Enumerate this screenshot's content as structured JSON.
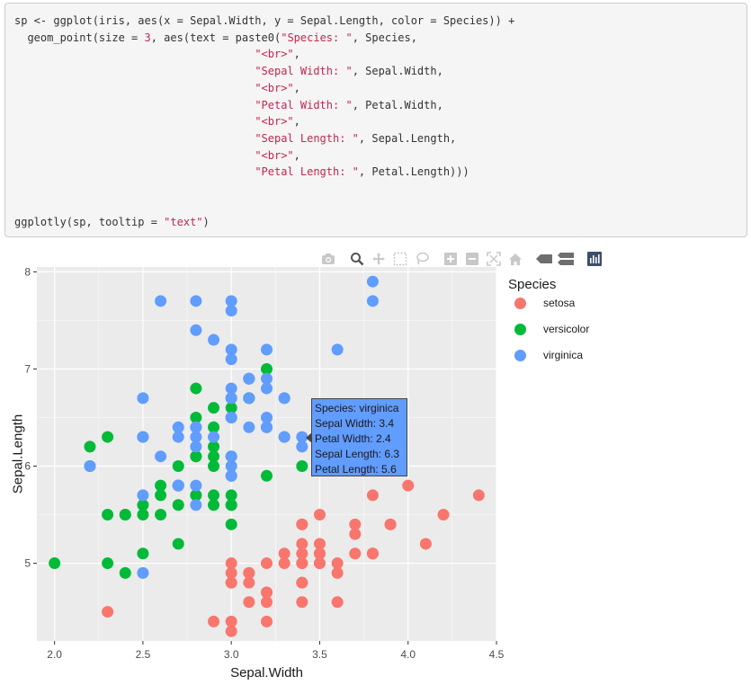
{
  "code": {
    "line1a": "sp <- ggplot(iris, aes(x = Sepal.Width, y = Sepal.Length, color = Species)) +",
    "line2a": "  geom_point(size = ",
    "line2num": "3",
    "line2b": ", aes(text = paste0(",
    "line2str": "\"Species: \"",
    "line2c": ", Species,",
    "line3str": "\"<br>\"",
    "line3c": ",",
    "line4str": "\"Sepal Width: \"",
    "line4c": ", Sepal.Width,",
    "line5str": "\"<br>\"",
    "line5c": ",",
    "line6str": "\"Petal Width: \"",
    "line6c": ", Petal.Width,",
    "line7str": "\"<br>\"",
    "line7c": ",",
    "line8str": "\"Sepal Length: \"",
    "line8c": ", Sepal.Length,",
    "line9str": "\"<br>\"",
    "line9c": ",",
    "line10str": "\"Petal Length: \"",
    "line10c": ", Petal.Length)))",
    "line11a": "ggplotly(sp, tooltip = ",
    "line11str": "\"text\"",
    "line11c": ")"
  },
  "modebar": {
    "buttons": [
      "camera-icon",
      "zoom-icon",
      "pan-icon",
      "box-select-icon",
      "lasso-select-icon",
      "zoom-in-icon",
      "zoom-out-icon",
      "autoscale-icon",
      "reset-axes-icon",
      "spike-lines-icon",
      "compare-data-icon",
      "plotly-logo-icon"
    ]
  },
  "tooltip": {
    "lines": [
      "Species: virginica",
      "Sepal Width: 3.4",
      "Petal Width: 2.4",
      "Sepal Length: 6.3",
      "Petal Length: 5.6"
    ],
    "color": "#619cff"
  },
  "chart_data": {
    "type": "scatter",
    "title": "",
    "xlabel": "Sepal.Width",
    "ylabel": "Sepal.Length",
    "xlim": [
      1.9,
      4.5
    ],
    "ylim": [
      4.2,
      8.05
    ],
    "x_ticks": [
      "2.0",
      "2.5",
      "3.0",
      "3.5",
      "4.0",
      "4.5"
    ],
    "y_ticks": [
      "5",
      "6",
      "7",
      "8"
    ],
    "grid": true,
    "legend_title": "Species",
    "legend_position": "right",
    "background": "#ebebeb",
    "series": [
      {
        "name": "setosa",
        "color": "#f8766d",
        "points": [
          [
            3.5,
            5.1
          ],
          [
            3.0,
            4.9
          ],
          [
            3.2,
            4.7
          ],
          [
            3.1,
            4.6
          ],
          [
            3.6,
            5.0
          ],
          [
            3.9,
            5.4
          ],
          [
            3.4,
            4.6
          ],
          [
            3.4,
            5.0
          ],
          [
            2.9,
            4.4
          ],
          [
            3.1,
            4.9
          ],
          [
            3.7,
            5.4
          ],
          [
            3.4,
            4.8
          ],
          [
            3.0,
            4.8
          ],
          [
            3.0,
            4.3
          ],
          [
            4.0,
            5.8
          ],
          [
            4.4,
            5.7
          ],
          [
            3.9,
            5.4
          ],
          [
            3.5,
            5.1
          ],
          [
            3.8,
            5.7
          ],
          [
            3.8,
            5.1
          ],
          [
            3.4,
            5.4
          ],
          [
            3.7,
            5.1
          ],
          [
            3.6,
            4.6
          ],
          [
            3.3,
            5.1
          ],
          [
            3.4,
            4.8
          ],
          [
            3.0,
            5.0
          ],
          [
            3.4,
            5.0
          ],
          [
            3.5,
            5.2
          ],
          [
            3.4,
            5.2
          ],
          [
            3.2,
            4.7
          ],
          [
            3.1,
            4.8
          ],
          [
            3.4,
            5.4
          ],
          [
            4.1,
            5.2
          ],
          [
            4.2,
            5.5
          ],
          [
            3.1,
            4.9
          ],
          [
            3.2,
            5.0
          ],
          [
            3.5,
            5.5
          ],
          [
            3.6,
            4.9
          ],
          [
            3.0,
            4.4
          ],
          [
            3.4,
            5.1
          ],
          [
            3.5,
            5.0
          ],
          [
            2.3,
            4.5
          ],
          [
            3.2,
            4.4
          ],
          [
            3.5,
            5.0
          ],
          [
            3.8,
            5.1
          ],
          [
            3.0,
            4.8
          ],
          [
            3.8,
            5.1
          ],
          [
            3.2,
            4.6
          ],
          [
            3.7,
            5.3
          ],
          [
            3.3,
            5.0
          ]
        ]
      },
      {
        "name": "versicolor",
        "color": "#00ba38",
        "points": [
          [
            3.2,
            7.0
          ],
          [
            3.2,
            6.4
          ],
          [
            3.1,
            6.9
          ],
          [
            2.3,
            5.5
          ],
          [
            2.8,
            6.5
          ],
          [
            2.8,
            5.7
          ],
          [
            3.3,
            6.3
          ],
          [
            2.4,
            4.9
          ],
          [
            2.9,
            6.6
          ],
          [
            2.7,
            5.2
          ],
          [
            2.0,
            5.0
          ],
          [
            3.0,
            5.9
          ],
          [
            2.2,
            6.0
          ],
          [
            2.9,
            6.1
          ],
          [
            2.9,
            5.6
          ],
          [
            3.1,
            6.7
          ],
          [
            3.0,
            5.6
          ],
          [
            2.7,
            5.8
          ],
          [
            2.2,
            6.2
          ],
          [
            2.5,
            5.6
          ],
          [
            3.2,
            5.9
          ],
          [
            2.8,
            6.1
          ],
          [
            2.5,
            6.3
          ],
          [
            2.8,
            6.1
          ],
          [
            2.9,
            6.4
          ],
          [
            3.0,
            6.6
          ],
          [
            2.8,
            6.8
          ],
          [
            3.0,
            6.7
          ],
          [
            2.9,
            6.0
          ],
          [
            2.6,
            5.7
          ],
          [
            2.4,
            5.5
          ],
          [
            2.4,
            5.5
          ],
          [
            2.7,
            5.8
          ],
          [
            2.7,
            6.0
          ],
          [
            3.0,
            5.4
          ],
          [
            3.4,
            6.0
          ],
          [
            3.1,
            6.7
          ],
          [
            2.3,
            6.3
          ],
          [
            3.0,
            5.6
          ],
          [
            2.5,
            5.5
          ],
          [
            2.6,
            5.5
          ],
          [
            3.0,
            6.1
          ],
          [
            2.6,
            5.8
          ],
          [
            2.3,
            5.0
          ],
          [
            2.7,
            5.6
          ],
          [
            3.0,
            5.7
          ],
          [
            2.9,
            5.7
          ],
          [
            2.9,
            6.2
          ],
          [
            2.5,
            5.1
          ],
          [
            2.8,
            5.7
          ]
        ]
      },
      {
        "name": "virginica",
        "color": "#619cff",
        "points": [
          [
            3.3,
            6.3
          ],
          [
            2.7,
            5.8
          ],
          [
            3.0,
            7.1
          ],
          [
            2.9,
            6.3
          ],
          [
            3.0,
            6.5
          ],
          [
            3.0,
            7.6
          ],
          [
            2.5,
            4.9
          ],
          [
            2.9,
            7.3
          ],
          [
            2.5,
            6.7
          ],
          [
            3.6,
            7.2
          ],
          [
            3.2,
            6.5
          ],
          [
            2.7,
            6.4
          ],
          [
            3.0,
            6.8
          ],
          [
            2.5,
            5.7
          ],
          [
            2.8,
            5.8
          ],
          [
            3.2,
            6.4
          ],
          [
            3.0,
            6.5
          ],
          [
            3.8,
            7.7
          ],
          [
            2.6,
            7.7
          ],
          [
            2.2,
            6.0
          ],
          [
            3.2,
            6.9
          ],
          [
            2.8,
            5.6
          ],
          [
            2.8,
            7.7
          ],
          [
            2.7,
            6.3
          ],
          [
            3.3,
            6.7
          ],
          [
            3.2,
            7.2
          ],
          [
            2.8,
            6.2
          ],
          [
            3.0,
            6.1
          ],
          [
            2.8,
            6.4
          ],
          [
            3.0,
            7.2
          ],
          [
            2.8,
            7.4
          ],
          [
            3.8,
            7.9
          ],
          [
            2.8,
            6.4
          ],
          [
            2.8,
            6.3
          ],
          [
            2.6,
            6.1
          ],
          [
            3.0,
            7.7
          ],
          [
            3.4,
            6.3
          ],
          [
            3.1,
            6.4
          ],
          [
            3.0,
            6.0
          ],
          [
            3.1,
            6.9
          ],
          [
            3.1,
            6.7
          ],
          [
            3.1,
            6.9
          ],
          [
            2.7,
            5.8
          ],
          [
            3.2,
            6.8
          ],
          [
            3.3,
            6.7
          ],
          [
            3.0,
            6.7
          ],
          [
            2.5,
            6.3
          ],
          [
            3.0,
            6.5
          ],
          [
            3.4,
            6.2
          ],
          [
            3.0,
            5.9
          ]
        ]
      }
    ]
  }
}
